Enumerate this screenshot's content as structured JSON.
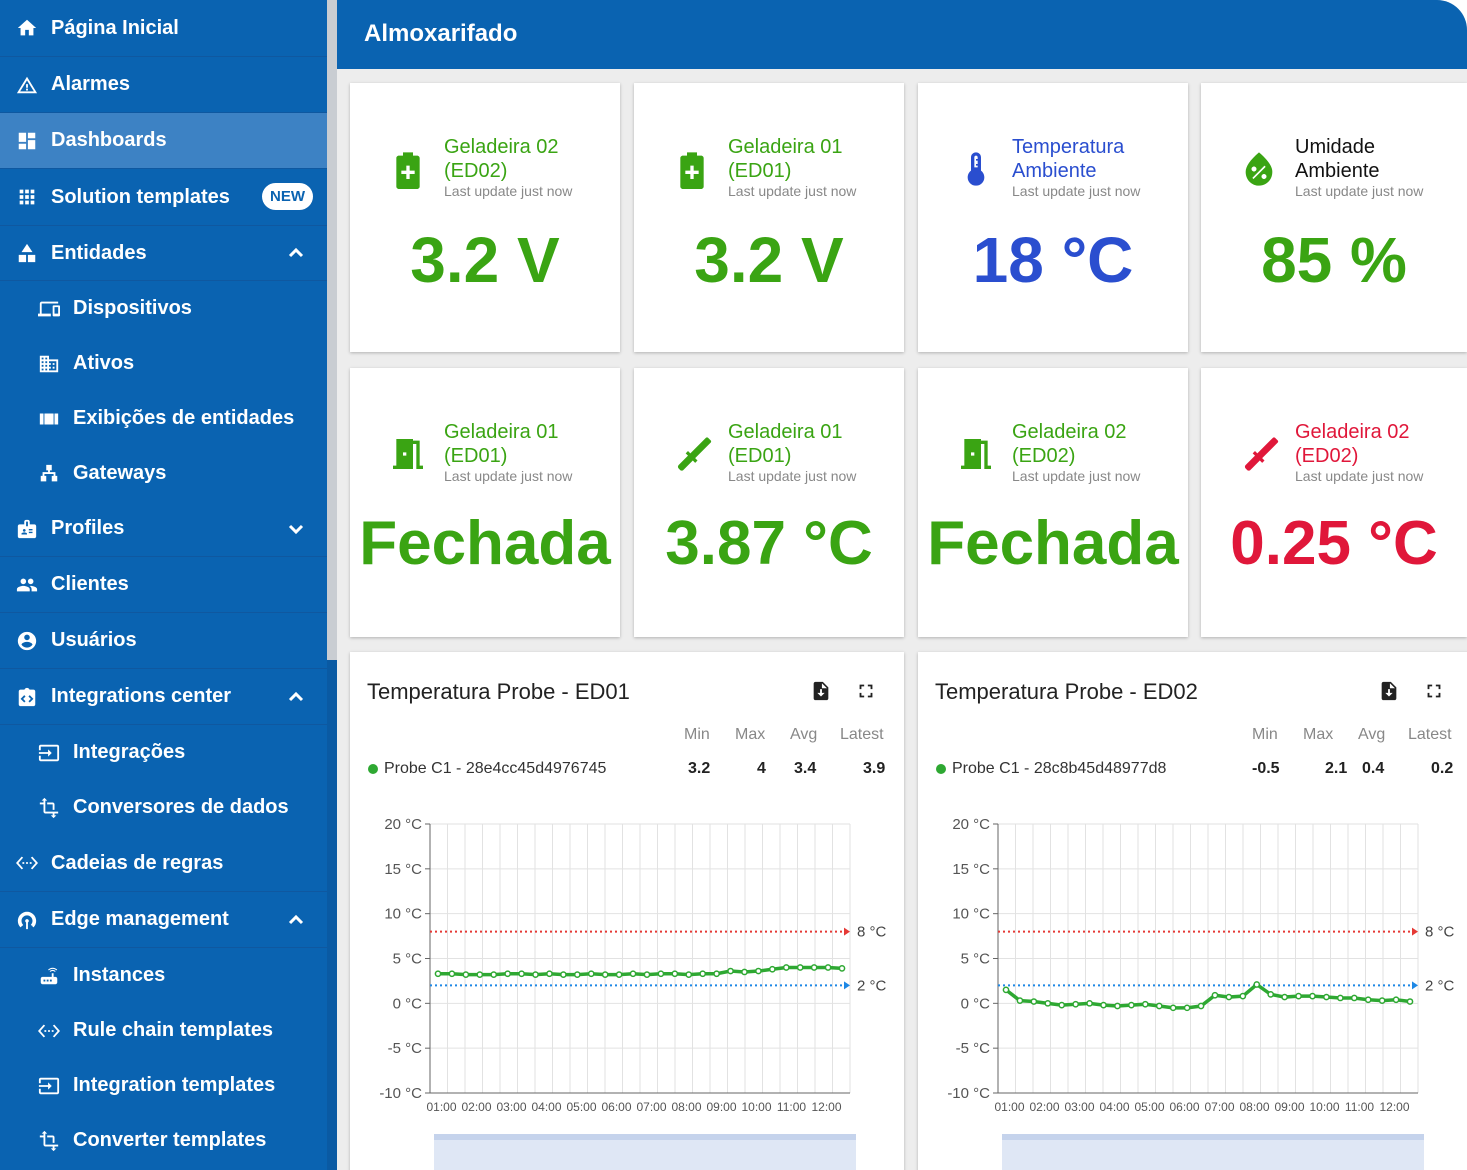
{
  "sidebar": {
    "items": [
      {
        "label": "Página Inicial",
        "icon": "home-icon"
      },
      {
        "label": "Alarmes",
        "icon": "warning-icon"
      },
      {
        "label": "Dashboards",
        "icon": "dashboard-icon"
      },
      {
        "label": "Solution templates",
        "icon": "apps-icon",
        "badge": "NEW"
      },
      {
        "label": "Entidades",
        "icon": "hierarchy-icon"
      },
      {
        "label": "Dispositivos",
        "icon": "devices-icon"
      },
      {
        "label": "Ativos",
        "icon": "domain-icon"
      },
      {
        "label": "Exibições de entidades",
        "icon": "view-icon"
      },
      {
        "label": "Gateways",
        "icon": "gateway-icon"
      },
      {
        "label": "Profiles",
        "icon": "badge-icon"
      },
      {
        "label": "Clientes",
        "icon": "people-icon"
      },
      {
        "label": "Usuários",
        "icon": "account-icon"
      },
      {
        "label": "Integrations center",
        "icon": "integrations-icon"
      },
      {
        "label": "Integrações",
        "icon": "input-icon"
      },
      {
        "label": "Conversores de dados",
        "icon": "transform-icon"
      },
      {
        "label": "Cadeias de regras",
        "icon": "settings-ethernet-icon"
      },
      {
        "label": "Edge management",
        "icon": "router-icon"
      },
      {
        "label": "Instances",
        "icon": "router-device-icon"
      },
      {
        "label": "Rule chain templates",
        "icon": "settings-ethernet-icon"
      },
      {
        "label": "Integration templates",
        "icon": "input-icon"
      },
      {
        "label": "Converter templates",
        "icon": "transform-icon"
      }
    ]
  },
  "header": {
    "title": "Almoxarifado"
  },
  "cards": [
    {
      "title": "Geladeira 02\n(ED02)",
      "update": "Last update just now",
      "value": "3.2 V",
      "color": "#3aa413",
      "icon": "battery-icon"
    },
    {
      "title": "Geladeira 01\n(ED01)",
      "update": "Last update just now",
      "value": "3.2 V",
      "color": "#3aa413",
      "icon": "battery-icon"
    },
    {
      "title": "Temperatura\nAmbiente",
      "update": "Last update just now",
      "value": "18 °C",
      "color": "#2a4ecf",
      "icon": "thermometer-icon"
    },
    {
      "title": "Umidade\nAmbiente",
      "update": "Last update just now",
      "value": "85 %",
      "color": "#3aa413",
      "icon": "humidity-icon"
    },
    {
      "title": "Geladeira 01\n(ED01)",
      "update": "Last update just now",
      "value": "Fechada",
      "color": "#3aa413",
      "icon": "door-icon"
    },
    {
      "title": "Geladeira 01\n(ED01)",
      "update": "Last update just now",
      "value": "3.87 °C",
      "color": "#3aa413",
      "icon": "probe-icon"
    },
    {
      "title": "Geladeira 02\n(ED02)",
      "update": "Last update just now",
      "value": "Fechada",
      "color": "#3aa413",
      "icon": "door-icon"
    },
    {
      "title": "Geladeira 02\n(ED02)",
      "update": "Last update just now",
      "value": "0.25 °C",
      "color": "#e0173a",
      "icon": "probe-icon"
    }
  ],
  "stat_headers": [
    "Min",
    "Max",
    "Avg",
    "Latest"
  ],
  "colors": {
    "series": "#2ea832",
    "upper": "#e53935",
    "lower": "#1e88e5"
  },
  "chart_data": [
    {
      "type": "line",
      "title": "Temperatura Probe - ED01",
      "legend": "Probe C1 - 28e4cc45d4976745",
      "stats": [
        "3.2",
        "4",
        "3.4",
        "3.9"
      ],
      "yticks": [
        "20 °C",
        "15 °C",
        "10 °C",
        "5 °C",
        "0 °C",
        "-5 °C",
        "-10 °C"
      ],
      "ylim": [
        -10,
        20
      ],
      "xticks": [
        "01:00",
        "02:00",
        "03:00",
        "04:00",
        "05:00",
        "06:00",
        "07:00",
        "08:00",
        "09:00",
        "10:00",
        "11:00",
        "12:00"
      ],
      "thresholds": [
        {
          "value": 8,
          "label": "8 °C"
        },
        {
          "value": 2,
          "label": "2 °C"
        }
      ],
      "values": [
        3.3,
        3.3,
        3.2,
        3.2,
        3.2,
        3.3,
        3.3,
        3.2,
        3.3,
        3.2,
        3.2,
        3.3,
        3.2,
        3.2,
        3.3,
        3.2,
        3.3,
        3.3,
        3.2,
        3.3,
        3.3,
        3.6,
        3.5,
        3.6,
        3.8,
        4.0,
        4.0,
        4.0,
        4.0,
        3.9
      ]
    },
    {
      "type": "line",
      "title": "Temperatura Probe - ED02",
      "legend": "Probe C1 - 28c8b45d48977d8",
      "stats": [
        "-0.5",
        "2.1",
        "0.4",
        "0.2"
      ],
      "yticks": [
        "20 °C",
        "15 °C",
        "10 °C",
        "5 °C",
        "0 °C",
        "-5 °C",
        "-10 °C"
      ],
      "ylim": [
        -10,
        20
      ],
      "xticks": [
        "01:00",
        "02:00",
        "03:00",
        "04:00",
        "05:00",
        "06:00",
        "07:00",
        "08:00",
        "09:00",
        "10:00",
        "11:00",
        "12:00"
      ],
      "thresholds": [
        {
          "value": 8,
          "label": "8 °C"
        },
        {
          "value": 2,
          "label": "2 °C"
        }
      ],
      "values": [
        1.5,
        0.3,
        0.2,
        0.0,
        -0.2,
        -0.1,
        0.0,
        -0.2,
        -0.3,
        -0.2,
        -0.1,
        -0.3,
        -0.5,
        -0.5,
        -0.3,
        0.9,
        0.7,
        0.8,
        2.1,
        1.0,
        0.7,
        0.8,
        0.8,
        0.7,
        0.6,
        0.6,
        0.4,
        0.3,
        0.4,
        0.2
      ]
    }
  ]
}
